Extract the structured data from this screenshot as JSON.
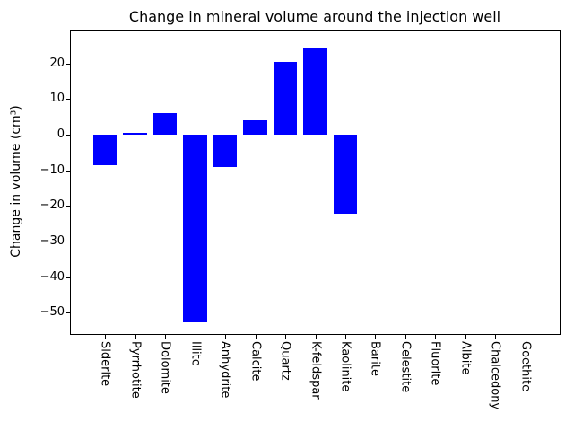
{
  "title": "Change in mineral volume around the injection well",
  "chart_data": {
    "type": "bar",
    "title": "Change in mineral volume around the injection well",
    "xlabel": "",
    "ylabel": "Change in volume (cm³)",
    "categories": [
      "Siderite",
      "Pyrrhotite",
      "Dolomite",
      "Illite",
      "Anhydrite",
      "Calcite",
      "Quartz",
      "K-feldspar",
      "Kaolinite",
      "Barite",
      "Celestite",
      "Fluorite",
      "Albite",
      "Chalcedony",
      "Goethite"
    ],
    "values": [
      -8.5,
      0.6,
      6.2,
      -52.7,
      -9.0,
      4.2,
      20.6,
      24.5,
      -22.1,
      0,
      0,
      0,
      0,
      0,
      0
    ],
    "yticks": [
      20,
      10,
      0,
      -10,
      -20,
      -30,
      -40,
      -50
    ],
    "ylim": [
      -56.0,
      29.3
    ],
    "xlim": [
      -1.14,
      15.14
    ],
    "bar_width_units": 0.8,
    "bar_color": "#0000ff",
    "grid": false,
    "legend": "none"
  }
}
